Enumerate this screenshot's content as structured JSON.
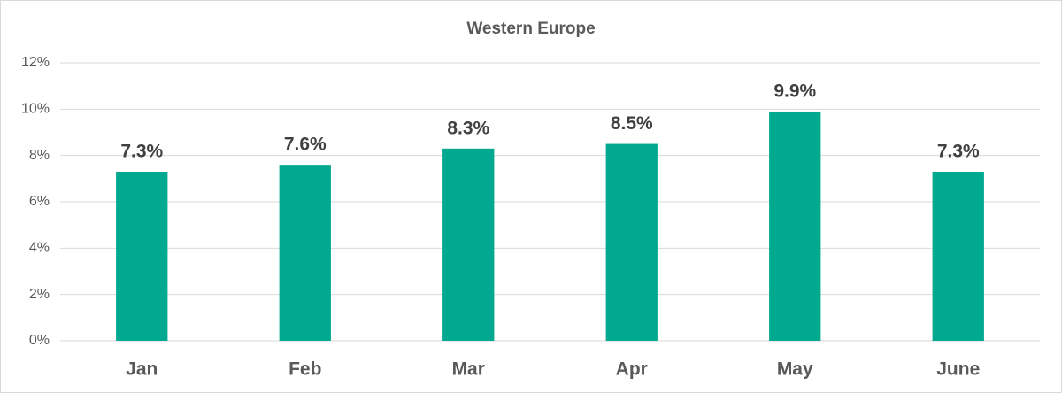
{
  "chart_data": {
    "type": "bar",
    "title": "Western Europe",
    "categories": [
      "Jan",
      "Feb",
      "Mar",
      "Apr",
      "May",
      "June"
    ],
    "values": [
      7.3,
      7.6,
      8.3,
      8.5,
      9.9,
      7.3
    ],
    "value_labels": [
      "7.3%",
      "7.6%",
      "8.3%",
      "8.5%",
      "9.9%",
      "7.3%"
    ],
    "color": "#00a98f",
    "ylim": [
      0,
      12
    ],
    "yticks": [
      {
        "value": 0,
        "label": "0%"
      },
      {
        "value": 2,
        "label": "2%"
      },
      {
        "value": 4,
        "label": "4%"
      },
      {
        "value": 6,
        "label": "6%"
      },
      {
        "value": 8,
        "label": "8%"
      },
      {
        "value": 10,
        "label": "10%"
      },
      {
        "value": 12,
        "label": "12%"
      }
    ],
    "grid": true
  }
}
